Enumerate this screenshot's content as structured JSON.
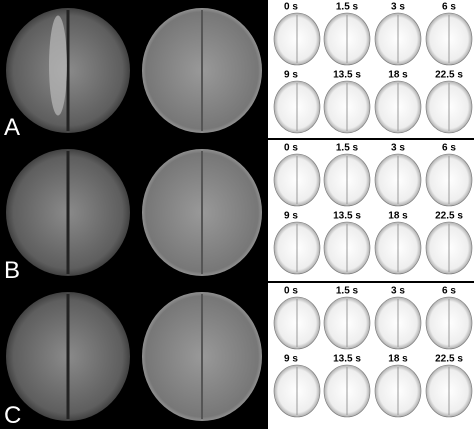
{
  "panels": [
    {
      "label": "A",
      "times": [
        "0 s",
        "1.5 s",
        "3 s",
        "6 s",
        "9 s",
        "13.5 s",
        "18 s",
        "22.5 s"
      ]
    },
    {
      "label": "B",
      "times": [
        "0 s",
        "1.5 s",
        "3 s",
        "6 s",
        "9 s",
        "13.5 s",
        "18 s",
        "22.5 s"
      ]
    },
    {
      "label": "C",
      "times": [
        "0 s",
        "1.5 s",
        "3 s",
        "6 s",
        "9 s",
        "13.5 s",
        "18 s",
        "22.5 s"
      ]
    }
  ]
}
